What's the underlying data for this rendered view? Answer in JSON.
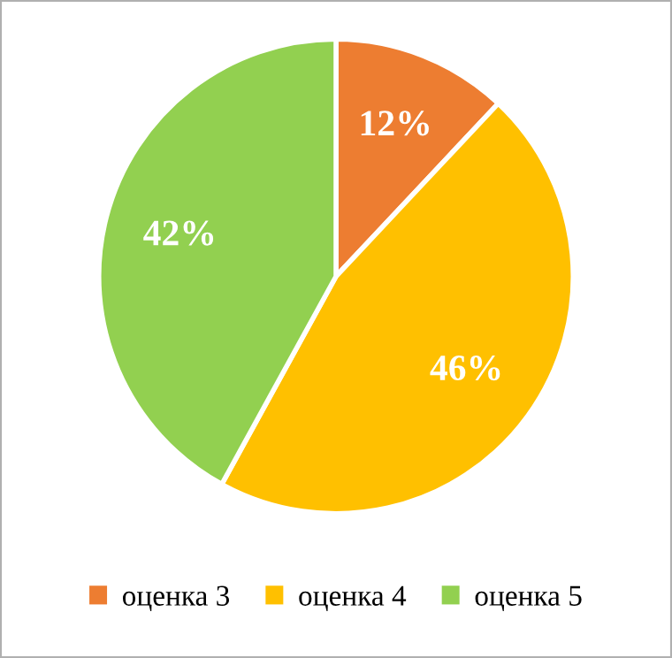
{
  "chart_data": {
    "type": "pie",
    "categories": [
      "оценка 3",
      "оценка 4",
      "оценка 5"
    ],
    "values": [
      12,
      46,
      42
    ],
    "colors": [
      "#ed7d31",
      "#ffc000",
      "#92d050"
    ],
    "value_labels": [
      "12%",
      "46%",
      "42%"
    ],
    "legend": "bottom"
  }
}
